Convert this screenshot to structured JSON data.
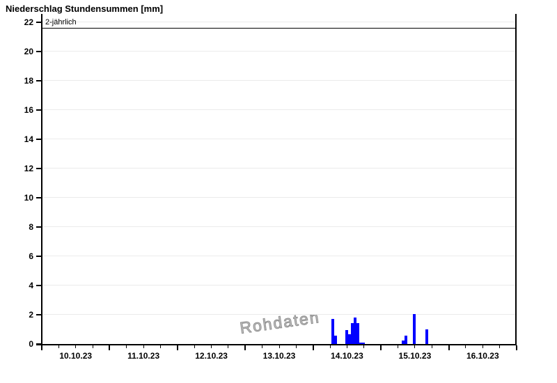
{
  "title": "Niederschlag Stundensummen [mm]",
  "watermark": "Rohdaten",
  "threshold": {
    "label": "2-jährlich",
    "value": 21.6
  },
  "colors": {
    "bar": "#0000ff",
    "axis": "#000000",
    "grid": "#ebebeb",
    "threshold_line": "#000000",
    "watermark": "#8f8f8f",
    "background": "#ffffff"
  },
  "chart_data": {
    "type": "bar",
    "title": "Niederschlag Stundensummen [mm]",
    "xlabel": "",
    "ylabel": "",
    "unit": "mm",
    "ylim": [
      0,
      22
    ],
    "y_ticks": [
      0,
      2,
      4,
      6,
      8,
      10,
      12,
      14,
      16,
      18,
      20,
      22
    ],
    "x_start": "10.10.23 00:00",
    "x_end": "17.10.23 00:00",
    "x_tick_labels": [
      "10.10.23",
      "11.10.23",
      "12.10.23",
      "13.10.23",
      "14.10.23",
      "15.10.23",
      "16.10.23"
    ],
    "minor_tick_hours": 6,
    "grid": "horizontal-light",
    "annotations": [
      {
        "label": "2-jährlich",
        "y": 21.6
      }
    ],
    "series": [
      {
        "name": "Stundensummen Rohdaten",
        "bars": [
          {
            "t": "14.10.23 06:00",
            "h": 102.5,
            "mm": 1.7
          },
          {
            "t": "14.10.23 07:00",
            "h": 103.5,
            "mm": 0.55
          },
          {
            "t": "14.10.23 11:00",
            "h": 107.4,
            "mm": 0.95
          },
          {
            "t": "14.10.23 12:00",
            "h": 108.4,
            "mm": 0.67
          },
          {
            "t": "14.10.23 13:00",
            "h": 109.4,
            "mm": 1.43
          },
          {
            "t": "14.10.23 14:00",
            "h": 110.4,
            "mm": 1.81
          },
          {
            "t": "14.10.23 15:00",
            "h": 111.4,
            "mm": 1.43
          },
          {
            "t": "14.10.23 16:00",
            "h": 112.4,
            "mm": 0.08
          },
          {
            "t": "14.10.23 17:00",
            "h": 113.4,
            "mm": 0.08
          },
          {
            "t": "15.10.23 07:00",
            "h": 127.3,
            "mm": 0.22
          },
          {
            "t": "15.10.23 08:00",
            "h": 128.3,
            "mm": 0.55
          },
          {
            "t": "15.10.23 11:00",
            "h": 131.4,
            "mm": 2.05
          },
          {
            "t": "15.10.23 16:00",
            "h": 135.8,
            "mm": 0.98
          }
        ]
      }
    ]
  }
}
